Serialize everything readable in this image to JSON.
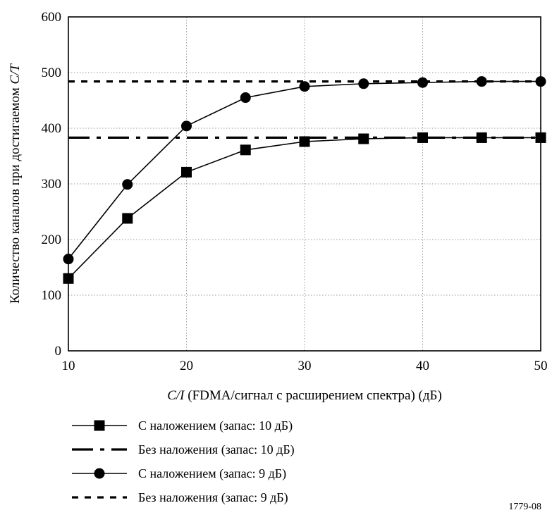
{
  "chart_data": {
    "type": "line",
    "xlabel_italic": "C/I",
    "xlabel_rest": " (FDMA/сигнал с расширением спектра) (дБ)",
    "ylabel_prefix": "Количество каналов при достигаемом ",
    "ylabel_italic": "C/T",
    "xlim": [
      10,
      50
    ],
    "ylim": [
      0,
      600
    ],
    "x_ticks": [
      10,
      20,
      30,
      40,
      50
    ],
    "y_ticks": [
      0,
      100,
      200,
      300,
      400,
      500,
      600
    ],
    "grid": true,
    "x": [
      10,
      15,
      20,
      25,
      30,
      35,
      40,
      45,
      50
    ],
    "series": [
      {
        "name": "С наложением (запас: 10 дБ)",
        "style": "solid",
        "marker": "square",
        "values": [
          130,
          238,
          321,
          361,
          376,
          381,
          383,
          383,
          383
        ]
      },
      {
        "name": "Без наложения (запас: 10 дБ)",
        "style": "longdash",
        "marker": "none",
        "values": [
          383,
          383,
          383,
          383,
          383,
          383,
          383,
          383,
          383
        ]
      },
      {
        "name": "С наложением (запас: 9 дБ)",
        "style": "solid",
        "marker": "circle",
        "values": [
          165,
          299,
          404,
          455,
          475,
          480,
          482,
          484,
          484
        ]
      },
      {
        "name": "Без наложения (запас: 9 дБ)",
        "style": "shortdash",
        "marker": "none",
        "values": [
          484,
          484,
          484,
          484,
          484,
          484,
          484,
          484,
          484
        ]
      }
    ],
    "figure_id": "1779-08"
  }
}
